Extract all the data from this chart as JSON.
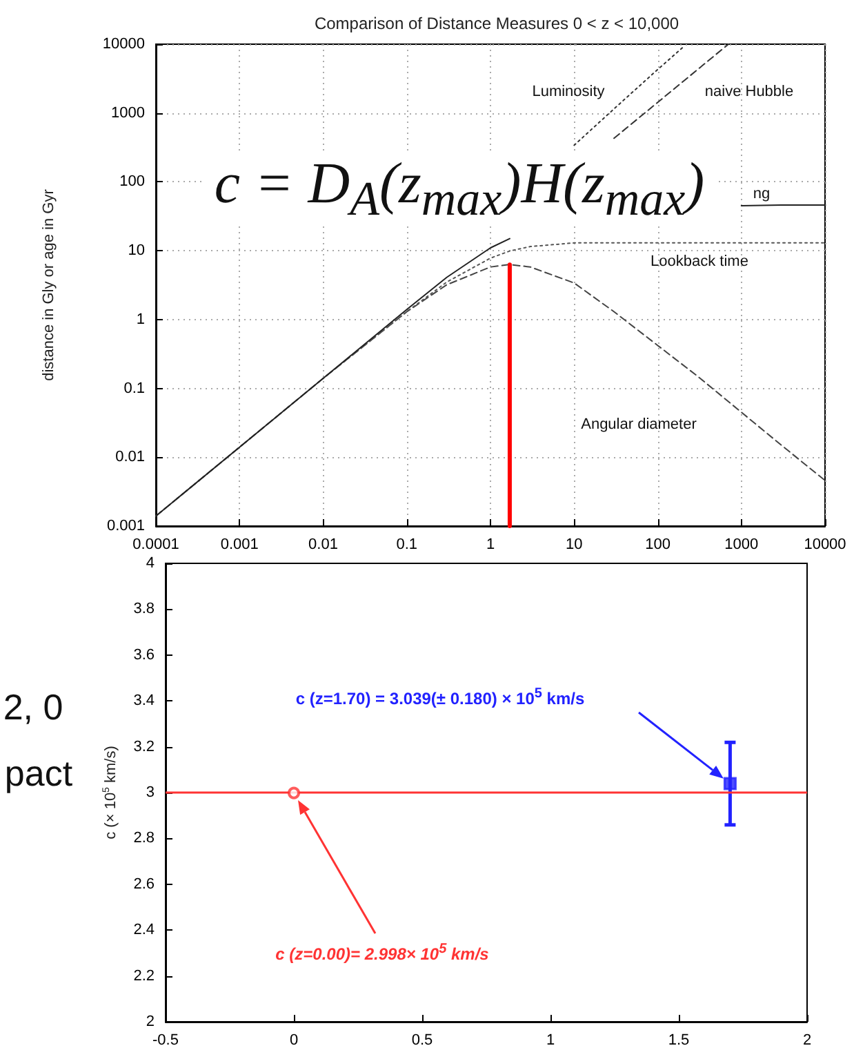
{
  "chart_data": [
    {
      "type": "line",
      "title": "Comparison of Distance Measures 0 < z < 10,000",
      "ylabel": "distance in Gly or age in Gyr",
      "xlim": [
        0.0001,
        10000
      ],
      "ylim": [
        0.001,
        10000
      ],
      "xticks": [
        0.0001,
        0.001,
        0.01,
        0.1,
        1,
        10,
        100,
        1000,
        10000
      ],
      "yticks": [
        0.001,
        0.01,
        0.1,
        1,
        10,
        100,
        1000,
        10000
      ],
      "log": "xy",
      "grid": true,
      "marker": "none",
      "series": [
        {
          "color": "#444444",
          "line_style": "dashed",
          "x": [
            0.0001,
            0.001,
            0.01,
            0.1,
            0.3,
            1,
            1.7,
            3,
            10,
            30,
            100,
            300,
            1000,
            3000,
            10000
          ],
          "values": [
            0.0014,
            0.014,
            0.14,
            1.3,
            3.2,
            5.8,
            6.3,
            5.8,
            3.4,
            1.3,
            0.42,
            0.15,
            0.045,
            0.015,
            0.0046
          ]
        },
        {
          "color": "#555555",
          "line_style": "dotted",
          "x": [
            0.0001,
            0.001,
            0.01,
            0.1,
            0.3,
            1,
            1.7,
            3,
            10,
            30,
            100,
            1000,
            10000
          ],
          "values": [
            0.0014,
            0.014,
            0.14,
            1.3,
            3.5,
            7.8,
            9.9,
            11.5,
            13,
            13,
            13,
            13,
            13
          ]
        },
        {
          "color": "#222222",
          "line_style": "solid",
          "x": [
            0.0001,
            0.001,
            0.01,
            0.1,
            0.3,
            1,
            1.7,
            3,
            1000,
            3000,
            10000
          ],
          "values": [
            0.0014,
            0.014,
            0.14,
            1.4,
            4.1,
            11,
            15,
            null,
            45,
            46,
            46
          ]
        },
        {
          "color": "#333333",
          "line_style": "dotted",
          "x": [
            10,
            30,
            100,
            200
          ],
          "values": [
            340,
            1150,
            4300,
            9000
          ]
        },
        {
          "color": "#333333",
          "line_style": "dashed",
          "x": [
            30,
            100,
            300,
            700
          ],
          "values": [
            430,
            1430,
            4290,
            10000
          ]
        },
        {
          "color": "#ff0000",
          "x": [
            1.7,
            1.7
          ],
          "values": [
            0.001,
            6.3
          ]
        }
      ],
      "annotations": [
        "c = D$_{A}$(z$_{max}$)H(z$_{max}$)",
        "Luminosity",
        "naive Hubble",
        "ng",
        "Lookback time",
        "Angular diameter"
      ]
    },
    {
      "type": "scatter",
      "ylabel": "c (× 10$^{5}$ km/s)",
      "xlim": [
        -0.5,
        2
      ],
      "ylim": [
        2,
        4
      ],
      "xticks": [
        -0.5,
        0,
        0.5,
        1,
        1.5,
        2
      ],
      "yticks": [
        2,
        2.2,
        2.4,
        2.6,
        2.8,
        3,
        3.2,
        3.4,
        3.6,
        3.8,
        4
      ],
      "series": [
        {
          "color": "#ff3333",
          "marker": "circle",
          "x": [
            0
          ],
          "values": [
            2.998
          ]
        },
        {
          "color": "#2222ff",
          "marker": "square",
          "x": [
            1.7
          ],
          "values": [
            3.039
          ],
          "errors": [
            0.18
          ]
        }
      ],
      "ref_lines": [
        {
          "axis": "y",
          "value": 3,
          "color": "#ff3333"
        }
      ],
      "annotations": [
        "c (z=0.00)= 2.998× 10$^{5}$ km/s",
        "c (z=1.70) = 3.039(± 0.180) × 10$^{5}$ km/s",
        "2, 0",
        "pact"
      ]
    }
  ]
}
